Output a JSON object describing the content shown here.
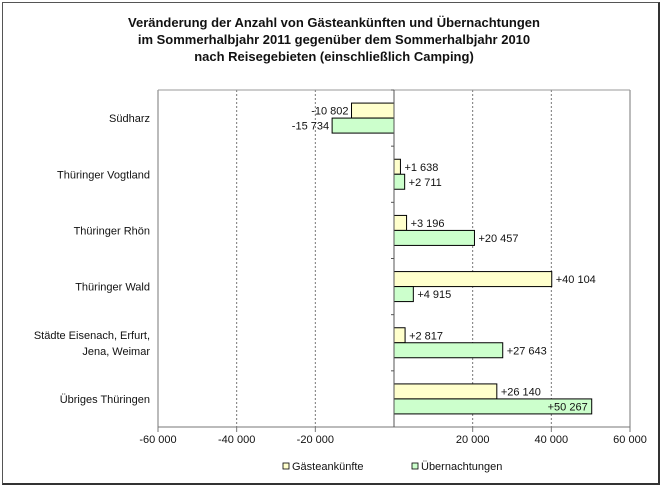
{
  "chart_data": {
    "type": "bar",
    "orientation": "horizontal",
    "title_lines": [
      "Veränderung der Anzahl von Gästeankünften und Übernachtungen",
      "im Sommerhalbjahr 2011 gegenüber dem Sommerhalbjahr 2010",
      "nach Reisegebieten (einschließlich Camping)"
    ],
    "categories": [
      [
        "Südharz"
      ],
      [
        "Thüringer Vogtland"
      ],
      [
        "Thüringer Rhön"
      ],
      [
        "Thüringer Wald"
      ],
      [
        "Städte Eisenach, Erfurt,",
        "Jena, Weimar"
      ],
      [
        "Übriges Thüringen"
      ]
    ],
    "series": [
      {
        "name": "Gästeankünfte",
        "color": "#ffffcc",
        "values": [
          -10802,
          1638,
          3196,
          40104,
          2817,
          26140
        ],
        "labels": [
          "-10 802",
          "+1 638",
          "+3 196",
          "+40 104",
          "+2 817",
          "+26 140"
        ]
      },
      {
        "name": "Übernachtungen",
        "color": "#ccffcc",
        "values": [
          -15734,
          2711,
          20457,
          4915,
          27643,
          50267
        ],
        "labels": [
          "-15 734",
          "+2 711",
          "+20 457",
          "+4 915",
          "+27 643",
          "+50 267"
        ]
      }
    ],
    "xlim": [
      -60000,
      60000
    ],
    "xticks": [
      -60000,
      -40000,
      -20000,
      20000,
      40000,
      60000
    ],
    "xtick_labels": [
      "-60 000",
      "-40 000",
      "-20 000",
      "20 000",
      "40 000",
      "60 000"
    ],
    "grid": "vertical dashed",
    "legend": "bottom"
  }
}
